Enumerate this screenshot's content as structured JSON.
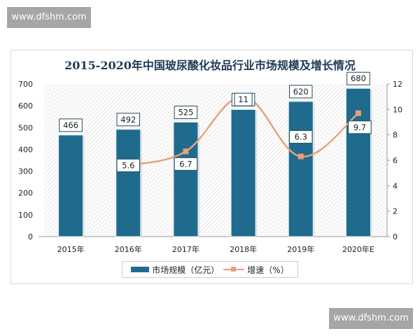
{
  "watermarks": {
    "top": "www.dfshm.com",
    "bottom": "www.dfshm.com"
  },
  "chart_data": {
    "type": "bar",
    "title": "2015-2020年中国玻尿酸化妆品行业市场规模及增长情况",
    "categories": [
      "2015年",
      "2016年",
      "2017年",
      "2018年",
      "2019年",
      "2020年E"
    ],
    "series": [
      {
        "name": "市场规模（亿元）",
        "type": "bar",
        "axis": "left",
        "color": "#1f6b8e",
        "values": [
          466,
          492,
          525,
          583,
          620,
          680
        ]
      },
      {
        "name": "增速（%）",
        "type": "line",
        "axis": "right",
        "color": "#e8a07c",
        "values": [
          null,
          5.6,
          6.7,
          11,
          6.3,
          9.7
        ]
      }
    ],
    "left_axis": {
      "ylim": [
        0,
        700
      ],
      "ticks": [
        0,
        100,
        200,
        300,
        400,
        500,
        600,
        700
      ]
    },
    "right_axis": {
      "ylim": [
        0,
        12
      ],
      "ticks": [
        0,
        2,
        4,
        6,
        8,
        10,
        12
      ]
    },
    "xlabel": "",
    "ylabel": "",
    "grid": false,
    "legend_position": "bottom",
    "data_labels": true
  },
  "legend": {
    "bar_label": "市场规模（亿元）",
    "line_label": "增速（%）"
  }
}
